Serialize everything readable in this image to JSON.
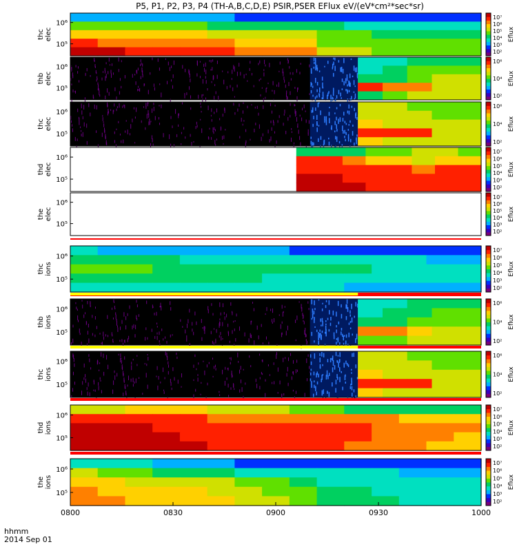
{
  "chart_data": {
    "type": "heatmap",
    "title": "P5, P1, P2, P3, P4 (TH-A,B,C,D,E) PSIR,PSER EFlux eV/(eV*cm²*sec*sr)",
    "x_ticks": [
      "0800",
      "0830",
      "0900",
      "0930",
      "1000"
    ],
    "x_tick_minutes": [
      0,
      30,
      60,
      90,
      120
    ],
    "x_range_minutes": [
      0,
      120
    ],
    "x_label_primary": "hhmm",
    "x_label_secondary": "2014 Sep 01",
    "colorbar_label": "Eflux",
    "scale": "log",
    "colormap": [
      "#7a007a",
      "#3a00c0",
      "#0030ff",
      "#00b0ff",
      "#00e0c0",
      "#00d060",
      "#60e000",
      "#d0e000",
      "#ffd000",
      "#ff8000",
      "#ff2000",
      "#c00000"
    ],
    "panels": [
      {
        "label": "thc elec",
        "y_ticks": [
          "10⁶",
          "10⁵"
        ],
        "cbar_ticks": [
          "10⁷",
          "10⁶",
          "10⁵",
          "10⁴",
          "10³",
          "10²"
        ],
        "cbar_range": [
          2,
          7
        ],
        "bands": [
          [
            3.5,
            3.5,
            3.3,
            3.3,
            3.2,
            3.2,
            3.1,
            3.0,
            3.0,
            2.9,
            2.9,
            2.8,
            2.8,
            2.7,
            2.7
          ],
          [
            4.8,
            4.7,
            4.6,
            4.6,
            4.5,
            4.4,
            4.4,
            4.3,
            4.2,
            4.1,
            4.0,
            3.9,
            3.9,
            3.8,
            3.7
          ],
          [
            5.8,
            5.7,
            5.6,
            5.5,
            5.5,
            5.4,
            5.3,
            5.2,
            5.1,
            4.6,
            4.5,
            4.4,
            4.3,
            4.3,
            4.2
          ],
          [
            6.5,
            6.3,
            6.2,
            6.1,
            6.0,
            5.9,
            5.8,
            5.7,
            5.6,
            4.9,
            4.8,
            4.7,
            4.6,
            4.6,
            4.5
          ],
          [
            7.0,
            6.8,
            6.7,
            6.6,
            6.5,
            6.4,
            6.3,
            6.2,
            6.0,
            5.1,
            5.0,
            4.9,
            4.8,
            4.8,
            4.7
          ]
        ]
      },
      {
        "label": "thb elec",
        "y_ticks": [
          "10⁶",
          "10⁵"
        ],
        "cbar_ticks": [
          "10⁶",
          "10⁴",
          "10²"
        ],
        "cbar_range": [
          1,
          7
        ],
        "noise_until_minute": 84,
        "bands": [
          [
            3.0,
            3.2,
            3.6,
            3.8,
            3.8
          ],
          [
            3.4,
            3.6,
            4.0,
            4.2,
            4.2
          ],
          [
            3.6,
            3.8,
            4.3,
            4.6,
            4.6
          ],
          [
            6.2,
            6.0,
            5.8,
            4.8,
            4.8
          ],
          [
            3.8,
            4.0,
            4.6,
            4.8,
            4.8
          ]
        ]
      },
      {
        "label": "thc elec",
        "y_ticks": [
          "10⁶",
          "10⁵"
        ],
        "cbar_ticks": [
          "10⁶",
          "10⁴",
          "10²"
        ],
        "cbar_range": [
          1,
          7
        ],
        "noise_until_minute": 84,
        "bands": [
          [
            4.8,
            4.6,
            4.4,
            4.2,
            4.2
          ],
          [
            5.0,
            4.8,
            4.6,
            4.4,
            4.4
          ],
          [
            5.2,
            5.0,
            4.8,
            4.6,
            4.6
          ],
          [
            6.6,
            6.4,
            6.2,
            4.8,
            4.8
          ],
          [
            5.2,
            5.0,
            4.8,
            4.6,
            4.6
          ]
        ]
      },
      {
        "label": "thd elec",
        "y_ticks": [
          "10⁶",
          "10⁵"
        ],
        "cbar_ticks": [
          "10⁷",
          "10⁶",
          "10⁵",
          "10⁴",
          "10³",
          "10²"
        ],
        "cbar_range": [
          2,
          7
        ],
        "data_from_minute": 66,
        "bands": [
          [
            4.2,
            4.2,
            4.4,
            4.6,
            4.8,
            5.0,
            5.2,
            4.8
          ],
          [
            6.6,
            6.4,
            6.0,
            5.8,
            5.6,
            5.4,
            5.6,
            5.8
          ],
          [
            6.7,
            6.7,
            6.6,
            6.5,
            6.4,
            6.3,
            6.4,
            6.5
          ],
          [
            6.8,
            6.8,
            6.7,
            6.7,
            6.6,
            6.6,
            6.5,
            6.6
          ],
          [
            6.8,
            6.8,
            6.8,
            6.7,
            6.7,
            6.6,
            6.6,
            6.6
          ]
        ]
      },
      {
        "label": "the elec",
        "y_ticks": [
          "10⁶",
          "10⁵"
        ],
        "cbar_ticks": [
          "10⁷",
          "10⁶",
          "10⁵",
          "10⁴",
          "10³",
          "10²"
        ],
        "cbar_range": [
          2,
          7
        ],
        "empty": true
      },
      {
        "label": "thc ions",
        "y_ticks": [
          "10⁶",
          "10⁵"
        ],
        "cbar_ticks": [
          "10⁷",
          "10⁶",
          "10⁵",
          "10⁴",
          "10³",
          "10²"
        ],
        "cbar_range": [
          2,
          7
        ],
        "bands": [
          [
            3.6,
            3.5,
            3.4,
            3.4,
            3.3,
            3.3,
            3.2,
            3.2,
            3.1,
            3.1,
            3.0,
            3.0,
            3.0,
            2.9,
            2.9
          ],
          [
            4.2,
            4.2,
            4.1,
            4.1,
            4.0,
            4.0,
            3.9,
            3.9,
            3.8,
            3.8,
            3.7,
            3.6,
            3.6,
            3.5,
            3.5
          ],
          [
            4.6,
            4.5,
            4.5,
            4.4,
            4.4,
            4.3,
            4.3,
            4.2,
            4.2,
            4.1,
            4.1,
            4.0,
            3.9,
            3.9,
            3.8
          ],
          [
            4.4,
            4.3,
            4.3,
            4.2,
            4.2,
            4.1,
            4.1,
            4.0,
            4.0,
            3.9,
            3.9,
            3.8,
            3.7,
            3.7,
            3.6
          ],
          [
            4.0,
            4.0,
            3.9,
            3.9,
            3.8,
            3.8,
            3.7,
            3.7,
            3.6,
            3.6,
            3.5,
            3.5,
            3.4,
            3.4,
            3.3
          ]
        ]
      },
      {
        "label": "thb ions",
        "y_ticks": [
          "10⁶",
          "10⁵"
        ],
        "cbar_ticks": [
          "10⁶",
          "10⁴",
          "10²"
        ],
        "cbar_range": [
          1,
          7
        ],
        "noise_until_minute": 84,
        "bands": [
          [
            3.0,
            3.2,
            3.5,
            3.7,
            3.7
          ],
          [
            3.4,
            3.6,
            3.9,
            4.2,
            4.2
          ],
          [
            3.6,
            3.8,
            4.2,
            4.4,
            4.4
          ],
          [
            6.0,
            5.8,
            5.6,
            4.6,
            4.6
          ],
          [
            4.0,
            4.2,
            4.6,
            4.8,
            4.8
          ]
        ]
      },
      {
        "label": "thc ions",
        "y_ticks": [
          "10⁶",
          "10⁵"
        ],
        "cbar_ticks": [
          "10⁶",
          "10⁴",
          "10²"
        ],
        "cbar_range": [
          1,
          7
        ],
        "noise_until_minute": 84,
        "bands": [
          [
            4.8,
            4.6,
            4.4,
            4.2,
            4.2
          ],
          [
            5.0,
            4.8,
            4.6,
            4.4,
            4.4
          ],
          [
            5.2,
            5.0,
            4.8,
            4.6,
            4.6
          ],
          [
            6.6,
            6.4,
            6.2,
            4.8,
            4.8
          ],
          [
            5.2,
            5.0,
            4.8,
            4.6,
            4.6
          ]
        ]
      },
      {
        "label": "thd ions",
        "y_ticks": [
          "10⁶",
          "10⁵"
        ],
        "cbar_ticks": [
          "10⁷",
          "10⁶",
          "10⁵",
          "10⁴",
          "10³",
          "10²"
        ],
        "cbar_range": [
          2,
          7
        ],
        "bands": [
          [
            5.2,
            5.4,
            5.6,
            5.8,
            5.6,
            5.4,
            5.2,
            5.0,
            4.8,
            4.6,
            4.4,
            4.4,
            4.2,
            4.2,
            4.2
          ],
          [
            6.6,
            6.6,
            6.5,
            6.4,
            6.4,
            6.3,
            6.3,
            6.2,
            6.2,
            6.1,
            6.0,
            5.9,
            5.8,
            5.8,
            5.7
          ],
          [
            6.8,
            6.8,
            6.8,
            6.7,
            6.7,
            6.7,
            6.6,
            6.6,
            6.5,
            6.5,
            6.4,
            6.2,
            6.0,
            6.0,
            5.9
          ],
          [
            6.8,
            6.8,
            6.8,
            6.8,
            6.7,
            6.7,
            6.7,
            6.6,
            6.6,
            6.5,
            6.4,
            6.2,
            6.0,
            5.9,
            5.8
          ],
          [
            6.8,
            6.8,
            6.8,
            6.8,
            6.8,
            6.7,
            6.7,
            6.6,
            6.5,
            6.4,
            6.3,
            6.1,
            5.9,
            5.8,
            5.6
          ]
        ]
      },
      {
        "label": "the ions",
        "y_ticks": [
          "10⁶",
          "10⁵"
        ],
        "cbar_ticks": [
          "10⁷",
          "10⁶",
          "10⁵",
          "10⁴",
          "10³",
          "10²"
        ],
        "cbar_range": [
          2,
          7
        ],
        "bands": [
          [
            4.0,
            3.8,
            3.6,
            3.4,
            3.3,
            3.2,
            3.1,
            3.1,
            3.0,
            3.0,
            2.9,
            2.9,
            2.8,
            2.8,
            2.8
          ],
          [
            5.0,
            4.8,
            4.6,
            4.4,
            4.3,
            4.2,
            4.0,
            3.9,
            3.8,
            3.7,
            3.6,
            3.6,
            3.5,
            3.5,
            3.4
          ],
          [
            5.6,
            5.5,
            5.4,
            5.4,
            5.3,
            5.1,
            4.8,
            4.5,
            4.2,
            4.0,
            3.9,
            3.8,
            3.8,
            3.7,
            3.7
          ],
          [
            6.0,
            5.8,
            5.7,
            5.7,
            5.6,
            5.4,
            5.1,
            4.8,
            4.5,
            4.2,
            4.1,
            4.0,
            3.9,
            3.9,
            3.8
          ],
          [
            6.2,
            6.0,
            5.8,
            5.8,
            5.7,
            5.5,
            5.2,
            5.0,
            4.7,
            4.4,
            4.2,
            4.1,
            4.0,
            4.0,
            3.9
          ]
        ]
      }
    ]
  }
}
